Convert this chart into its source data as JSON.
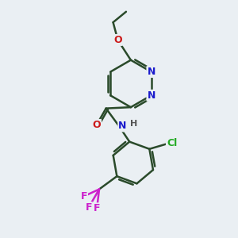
{
  "background_color": "#eaeff3",
  "bond_color": "#2a4a2a",
  "bond_width": 1.8,
  "atom_colors": {
    "N": "#1a1acc",
    "O": "#cc1a1a",
    "Cl": "#22aa22",
    "F": "#cc22cc",
    "C": "#2a4a2a"
  },
  "font_size": 9,
  "fig_size": [
    3.0,
    3.0
  ],
  "dpi": 100
}
